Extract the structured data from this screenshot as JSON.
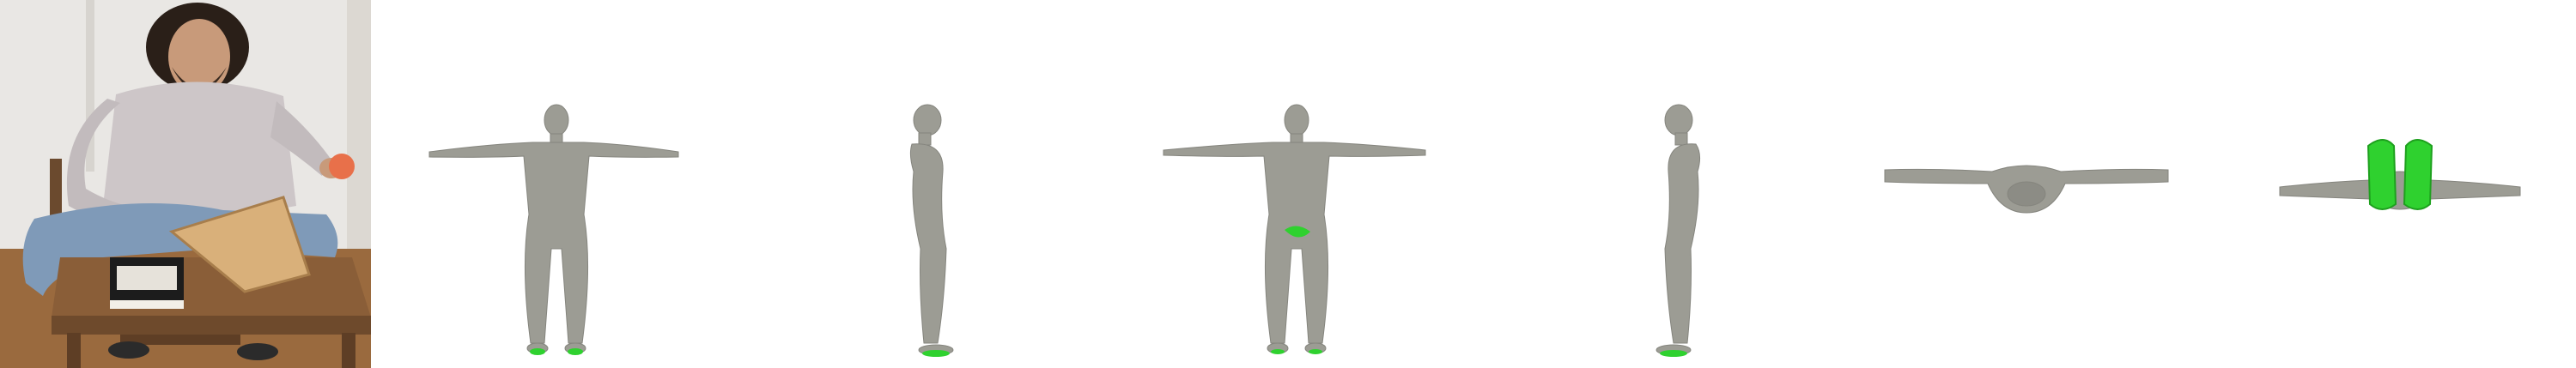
{
  "colors": {
    "background": "#ffffff",
    "body_mesh": "#9c9c94",
    "body_mesh_shade": "#7e7e77",
    "contact_highlight": "#2fd12f",
    "wall": "#e9e7e4",
    "floor": "#9a6a3e",
    "table": "#7a5232",
    "sweater": "#cdc6c8",
    "jeans": "#7f9ab8",
    "skin": "#c89a7a",
    "hair": "#2a1f18",
    "board": "#d9b07a",
    "book_cover": "#1c1c1c",
    "fruit": "#e8704a"
  },
  "panels": [
    {
      "id": "input-photo",
      "kind": "photograph",
      "subject": "person-seated-at-table"
    },
    {
      "id": "mesh-front",
      "kind": "body-mesh",
      "view": "front",
      "contact": "feet"
    },
    {
      "id": "mesh-side-left",
      "kind": "body-mesh",
      "view": "side",
      "contact": "feet"
    },
    {
      "id": "mesh-back",
      "kind": "body-mesh",
      "view": "back",
      "contact": "feet-and-pelvis"
    },
    {
      "id": "mesh-side-right",
      "kind": "body-mesh",
      "view": "side",
      "contact": "feet"
    },
    {
      "id": "mesh-top",
      "kind": "body-mesh",
      "view": "top",
      "contact": "none"
    },
    {
      "id": "mesh-bottom",
      "kind": "body-mesh",
      "view": "bottom",
      "contact": "soles"
    }
  ]
}
